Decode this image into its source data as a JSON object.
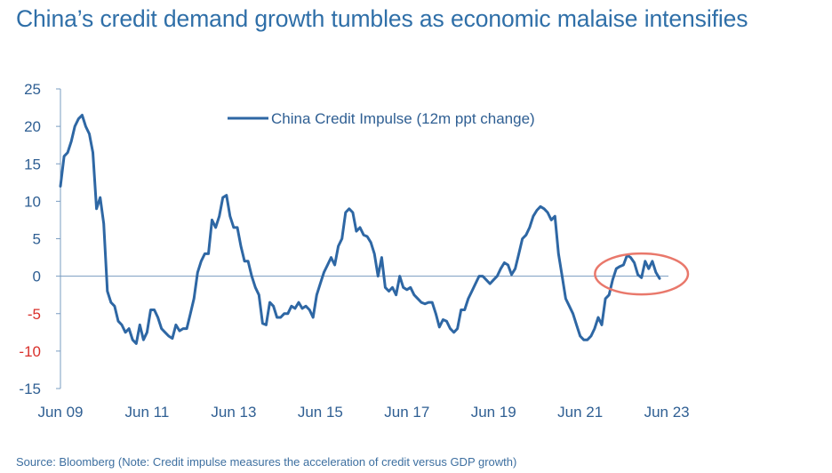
{
  "title": "China’s credit demand growth tumbles as economic malaise intensifies",
  "source": "Source: Bloomberg (Note: Credit impulse measures the acceleration of credit versus GDP growth)",
  "colors": {
    "series": "#2e67a4",
    "axis": "#7a9cc0",
    "negative_tick": "#d9302b",
    "highlight_circle": "#e9786b"
  },
  "chart_data": {
    "type": "line",
    "ylim": [
      -15,
      25
    ],
    "yticks": [
      "25",
      "20",
      "15",
      "10",
      "5",
      "0",
      "-5",
      "-10",
      "-15"
    ],
    "ytick_values": [
      25,
      20,
      15,
      10,
      5,
      0,
      -5,
      -10,
      -15
    ],
    "xticks": [
      "Jun 09",
      "Jun 11",
      "Jun 13",
      "Jun 15",
      "Jun 17",
      "Jun 19",
      "Jun 21",
      "Jun 23"
    ],
    "xtick_values": [
      "2009-06",
      "2011-06",
      "2013-06",
      "2015-06",
      "2017-06",
      "2019-06",
      "2021-06",
      "2023-06"
    ],
    "legend_position": "top-center",
    "series": [
      {
        "name": "China Credit Impulse (12m ppt change)",
        "points": [
          [
            "2009-06",
            12
          ],
          [
            "2009-07",
            16
          ],
          [
            "2009-08",
            16.5
          ],
          [
            "2009-09",
            18
          ],
          [
            "2009-10",
            20
          ],
          [
            "2009-11",
            21
          ],
          [
            "2009-12",
            21.5
          ],
          [
            "2010-01",
            20
          ],
          [
            "2010-02",
            19
          ],
          [
            "2010-03",
            16.5
          ],
          [
            "2010-04",
            9
          ],
          [
            "2010-05",
            10.5
          ],
          [
            "2010-06",
            7
          ],
          [
            "2010-07",
            -2
          ],
          [
            "2010-08",
            -3.5
          ],
          [
            "2010-09",
            -4
          ],
          [
            "2010-10",
            -6
          ],
          [
            "2010-11",
            -6.5
          ],
          [
            "2010-12",
            -7.5
          ],
          [
            "2011-01",
            -7
          ],
          [
            "2011-02",
            -8.5
          ],
          [
            "2011-03",
            -9
          ],
          [
            "2011-04",
            -6.5
          ],
          [
            "2011-05",
            -8.5
          ],
          [
            "2011-06",
            -7.5
          ],
          [
            "2011-07",
            -4.5
          ],
          [
            "2011-08",
            -4.5
          ],
          [
            "2011-09",
            -5.5
          ],
          [
            "2011-10",
            -7
          ],
          [
            "2011-11",
            -7.5
          ],
          [
            "2011-12",
            -8
          ],
          [
            "2012-01",
            -8.3
          ],
          [
            "2012-02",
            -6.5
          ],
          [
            "2012-03",
            -7.3
          ],
          [
            "2012-04",
            -7
          ],
          [
            "2012-05",
            -7
          ],
          [
            "2012-06",
            -5
          ],
          [
            "2012-07",
            -3
          ],
          [
            "2012-08",
            0.5
          ],
          [
            "2012-09",
            2
          ],
          [
            "2012-10",
            3
          ],
          [
            "2012-11",
            3
          ],
          [
            "2012-12",
            7.5
          ],
          [
            "2013-01",
            6.5
          ],
          [
            "2013-02",
            8
          ],
          [
            "2013-03",
            10.5
          ],
          [
            "2013-04",
            10.8
          ],
          [
            "2013-05",
            8
          ],
          [
            "2013-06",
            6.5
          ],
          [
            "2013-07",
            6.5
          ],
          [
            "2013-08",
            4
          ],
          [
            "2013-09",
            2
          ],
          [
            "2013-10",
            2
          ],
          [
            "2013-11",
            0
          ],
          [
            "2013-12",
            -1.5
          ],
          [
            "2014-01",
            -2.5
          ],
          [
            "2014-02",
            -6.3
          ],
          [
            "2014-03",
            -6.5
          ],
          [
            "2014-04",
            -3.5
          ],
          [
            "2014-05",
            -4
          ],
          [
            "2014-06",
            -5.5
          ],
          [
            "2014-07",
            -5.5
          ],
          [
            "2014-08",
            -5
          ],
          [
            "2014-09",
            -5
          ],
          [
            "2014-10",
            -4
          ],
          [
            "2014-11",
            -4.3
          ],
          [
            "2014-12",
            -3.5
          ],
          [
            "2015-01",
            -4.3
          ],
          [
            "2015-02",
            -4
          ],
          [
            "2015-03",
            -4.5
          ],
          [
            "2015-04",
            -5.5
          ],
          [
            "2015-05",
            -2.5
          ],
          [
            "2015-06",
            -1
          ],
          [
            "2015-07",
            0.5
          ],
          [
            "2015-08",
            1.5
          ],
          [
            "2015-09",
            2.5
          ],
          [
            "2015-10",
            1.5
          ],
          [
            "2015-11",
            4
          ],
          [
            "2015-12",
            5
          ],
          [
            "2016-01",
            8.5
          ],
          [
            "2016-02",
            9
          ],
          [
            "2016-03",
            8.5
          ],
          [
            "2016-04",
            6
          ],
          [
            "2016-05",
            6.5
          ],
          [
            "2016-06",
            5.5
          ],
          [
            "2016-07",
            5.3
          ],
          [
            "2016-08",
            4.5
          ],
          [
            "2016-09",
            3
          ],
          [
            "2016-10",
            0
          ],
          [
            "2016-11",
            2.5
          ],
          [
            "2016-12",
            -1.5
          ],
          [
            "2017-01",
            -2
          ],
          [
            "2017-02",
            -1.5
          ],
          [
            "2017-03",
            -2.5
          ],
          [
            "2017-04",
            0
          ],
          [
            "2017-05",
            -1.5
          ],
          [
            "2017-06",
            -1.8
          ],
          [
            "2017-07",
            -1.5
          ],
          [
            "2017-08",
            -2.5
          ],
          [
            "2017-09",
            -3
          ],
          [
            "2017-10",
            -3.5
          ],
          [
            "2017-11",
            -3.7
          ],
          [
            "2017-12",
            -3.5
          ],
          [
            "2018-01",
            -3.5
          ],
          [
            "2018-02",
            -5
          ],
          [
            "2018-03",
            -6.8
          ],
          [
            "2018-04",
            -5.8
          ],
          [
            "2018-05",
            -6
          ],
          [
            "2018-06",
            -7
          ],
          [
            "2018-07",
            -7.5
          ],
          [
            "2018-08",
            -7
          ],
          [
            "2018-09",
            -4.5
          ],
          [
            "2018-10",
            -4.5
          ],
          [
            "2018-11",
            -3
          ],
          [
            "2018-12",
            -2
          ],
          [
            "2019-01",
            -1
          ],
          [
            "2019-02",
            0
          ],
          [
            "2019-03",
            0
          ],
          [
            "2019-04",
            -0.5
          ],
          [
            "2019-05",
            -1
          ],
          [
            "2019-06",
            -0.5
          ],
          [
            "2019-07",
            0
          ],
          [
            "2019-08",
            1
          ],
          [
            "2019-09",
            1.8
          ],
          [
            "2019-10",
            1.5
          ],
          [
            "2019-11",
            0.2
          ],
          [
            "2019-12",
            1
          ],
          [
            "2020-01",
            3
          ],
          [
            "2020-02",
            5
          ],
          [
            "2020-03",
            5.5
          ],
          [
            "2020-04",
            6.5
          ],
          [
            "2020-05",
            8
          ],
          [
            "2020-06",
            8.8
          ],
          [
            "2020-07",
            9.3
          ],
          [
            "2020-08",
            9
          ],
          [
            "2020-09",
            8.5
          ],
          [
            "2020-10",
            7.5
          ],
          [
            "2020-11",
            8
          ],
          [
            "2020-12",
            3
          ],
          [
            "2021-01",
            0
          ],
          [
            "2021-02",
            -3
          ],
          [
            "2021-03",
            -4
          ],
          [
            "2021-04",
            -5
          ],
          [
            "2021-05",
            -6.5
          ],
          [
            "2021-06",
            -8
          ],
          [
            "2021-07",
            -8.5
          ],
          [
            "2021-08",
            -8.5
          ],
          [
            "2021-09",
            -8
          ],
          [
            "2021-10",
            -7
          ],
          [
            "2021-11",
            -5.5
          ],
          [
            "2021-12",
            -6.5
          ],
          [
            "2022-01",
            -3
          ],
          [
            "2022-02",
            -2.5
          ],
          [
            "2022-03",
            -0.5
          ],
          [
            "2022-04",
            1
          ],
          [
            "2022-05",
            1.3
          ],
          [
            "2022-06",
            1.5
          ],
          [
            "2022-07",
            2.8
          ],
          [
            "2022-08",
            2.5
          ],
          [
            "2022-09",
            1.8
          ],
          [
            "2022-10",
            0.2
          ],
          [
            "2022-11",
            -0.2
          ],
          [
            "2022-12",
            2
          ],
          [
            "2023-01",
            1
          ],
          [
            "2023-02",
            2
          ],
          [
            "2023-03",
            0.5
          ],
          [
            "2023-04",
            -0.3
          ]
        ]
      }
    ],
    "highlight": {
      "shape": "ellipse",
      "label": "",
      "around_x": [
        "2022-05",
        "2023-04"
      ]
    }
  }
}
